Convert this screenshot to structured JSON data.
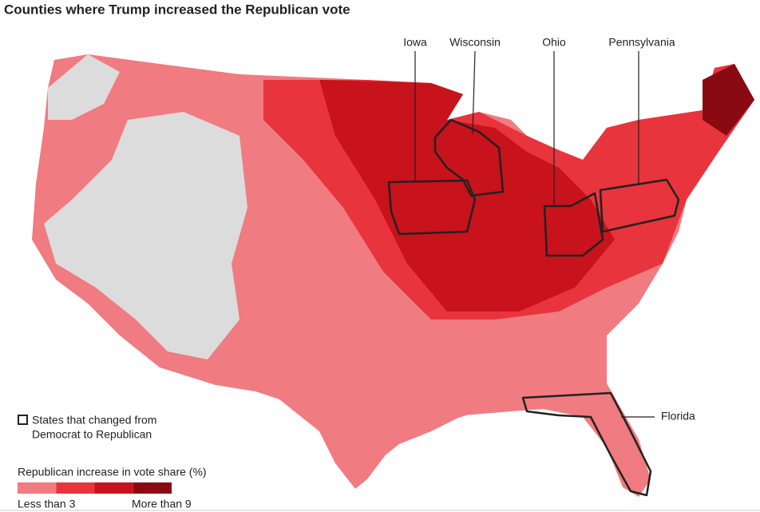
{
  "header": {
    "title": "Counties where Trump increased the Republican vote"
  },
  "states": [
    {
      "label": "Iowa"
    },
    {
      "label": "Wisconsin"
    },
    {
      "label": "Ohio"
    },
    {
      "label": "Pennsylvania"
    },
    {
      "label": "Florida"
    }
  ],
  "legend": {
    "outline_label": [
      "States that changed from",
      "Democrat to Republican"
    ],
    "scale_title": "Republican increase in vote share (%)",
    "colors": [
      "#f07b80",
      "#e8343d",
      "#c8121c",
      "#8a0a12"
    ],
    "low_label": "Less than 3",
    "high_label": "More than 9"
  }
}
